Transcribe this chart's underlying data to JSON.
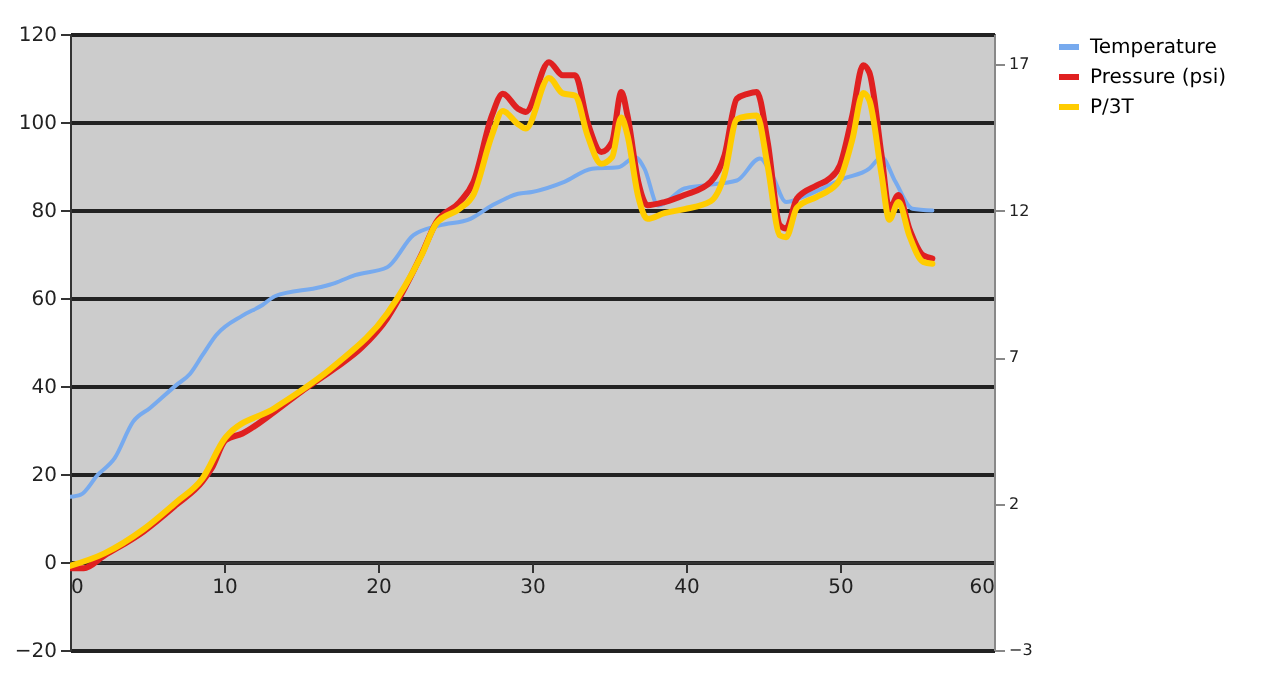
{
  "chart_data": {
    "type": "line",
    "xlim": [
      0,
      60
    ],
    "xticks": [
      0,
      10,
      20,
      30,
      40,
      50,
      60
    ],
    "ylim": [
      -20,
      120
    ],
    "yticks": [
      -20,
      0,
      20,
      40,
      60,
      80,
      100,
      120
    ],
    "y2lim": [
      -3,
      18.03
    ],
    "y2ticks": [
      -3,
      2,
      7,
      12,
      17
    ],
    "grid": "y",
    "legend": "right",
    "marker": "none",
    "line_style": "solid",
    "series": [
      {
        "name": "Temperature",
        "color": "#77aaee",
        "x": [
          0,
          0.7,
          1.8,
          2.9,
          4.1,
          5.2,
          6.9,
          7.8,
          8.6,
          9.5,
          11.2,
          12.5,
          13.3,
          16.3,
          17.2,
          18.5,
          20.6,
          22.3,
          24,
          26,
          27.4,
          29.1,
          30,
          32.1,
          33.9,
          35.6,
          36.7,
          37.3,
          38.2,
          39.9,
          41.2,
          43.3,
          44.8,
          45.6,
          46.5,
          47.6,
          50.2,
          51.9,
          52.7,
          53.6,
          54.7,
          56
        ],
        "values": [
          14.8,
          15.3,
          19.8,
          23.6,
          31.9,
          35,
          40.2,
          42.8,
          47,
          51.6,
          56,
          58.4,
          60.4,
          62.5,
          63.4,
          65.2,
          67,
          74.3,
          76.5,
          78,
          81,
          83.7,
          84.1,
          86.4,
          89.4,
          89.7,
          92,
          89.4,
          81,
          84.9,
          85.6,
          86.7,
          91.7,
          87.9,
          81.8,
          83,
          87.1,
          89.4,
          92,
          86.4,
          80.3,
          79.9
        ]
      },
      {
        "name": "Pressure (psi)",
        "color": "#e02020",
        "x": [
          0,
          0.9,
          2.2,
          4.8,
          6.9,
          8.6,
          9.2,
          10.1,
          11.2,
          13.3,
          15,
          17.2,
          18.9,
          20.6,
          21.5,
          22.8,
          23.8,
          25.3,
          26.2,
          27.4,
          28.1,
          29.1,
          29.6,
          31.1,
          32,
          32.8,
          33.6,
          34.5,
          35.2,
          35.8,
          36.2,
          36.9,
          37.5,
          38.6,
          39.9,
          41.6,
          42.5,
          43.3,
          44,
          44.6,
          45.3,
          46.1,
          46.5,
          47.2,
          48.5,
          49.3,
          50,
          50.8,
          51.5,
          51.9,
          52.7,
          53.2,
          53.8,
          54.5,
          55.4,
          56
        ],
        "values": [
          -1.4,
          -1.4,
          1.4,
          7,
          13,
          18.3,
          21.3,
          27.7,
          29.2,
          34.2,
          38.7,
          44,
          48.6,
          55.4,
          60.7,
          69.7,
          77.3,
          81.8,
          86.4,
          101.5,
          106.4,
          103,
          102.3,
          113.6,
          110.6,
          110.6,
          100,
          93.2,
          95.5,
          106.8,
          101.5,
          86.4,
          81.1,
          81.8,
          83.4,
          86.4,
          92.4,
          105.3,
          106.4,
          106.8,
          95.5,
          76.5,
          75.8,
          82.6,
          85.6,
          87.1,
          90.2,
          101.5,
          112.9,
          111.3,
          92.4,
          80.3,
          83.4,
          75.8,
          69.7,
          69
        ]
      },
      {
        "name": "P/3T",
        "color": "#ffcc00",
        "x": [
          0,
          2.2,
          4.8,
          6.9,
          8.6,
          10.1,
          13.3,
          17.2,
          20.6,
          22.8,
          23.8,
          25.3,
          26.2,
          27.4,
          28.1,
          29.1,
          29.6,
          31.1,
          32,
          32.8,
          33.6,
          34.5,
          35.2,
          35.8,
          36.2,
          36.9,
          37.5,
          38.6,
          39.9,
          41.6,
          42.5,
          43.3,
          44,
          44.6,
          45.3,
          46.1,
          46.5,
          47.2,
          48.5,
          49.3,
          50,
          50.8,
          51.5,
          51.9,
          52.7,
          53.2,
          53.8,
          54.5,
          55.4,
          56
        ],
        "values": [
          -0.9,
          1.9,
          7.5,
          13.6,
          19,
          28.3,
          35,
          44.7,
          56.5,
          69.5,
          77,
          80.3,
          83.5,
          97,
          102.5,
          99.5,
          98.5,
          110,
          106.5,
          106,
          97,
          90.5,
          92,
          101,
          97,
          83,
          78,
          79.3,
          80.2,
          82,
          88,
          100.6,
          101.3,
          101.5,
          90,
          74.2,
          73.8,
          80.5,
          83,
          84.5,
          87,
          96,
          106.6,
          105,
          88,
          77.8,
          81.8,
          74.2,
          68.2,
          67.8
        ]
      }
    ]
  }
}
